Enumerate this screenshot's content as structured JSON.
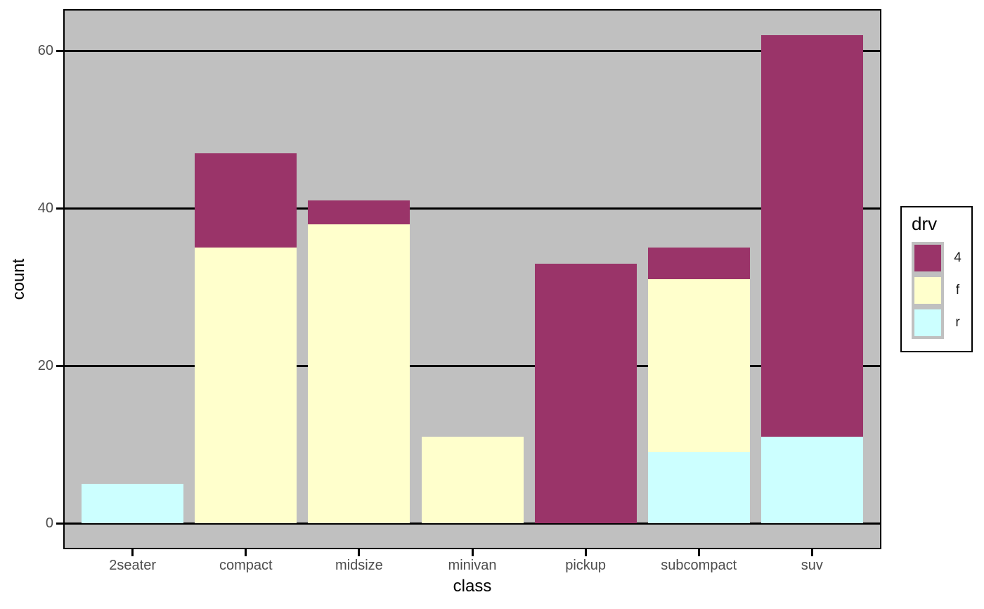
{
  "style": {
    "background": "#FFFFFF",
    "panel_background": "#C0C0C0",
    "grid_color": "#000000",
    "panel_border_color": "#000000",
    "tick_color": "#000000",
    "tick_label_color": "#4D4D4D",
    "axis_title_color": "#000000",
    "legend_background": "#FFFFFF",
    "legend_border_color": "#000000",
    "legend_key_background": "#C0C0C0"
  },
  "chart_data": {
    "type": "bar",
    "stacked": true,
    "title": "",
    "xlabel": "class",
    "ylabel": "count",
    "categories": [
      "2seater",
      "compact",
      "midsize",
      "minivan",
      "pickup",
      "subcompact",
      "suv"
    ],
    "series": [
      {
        "name": "4",
        "color": "#9A3469",
        "values": [
          0,
          12,
          3,
          0,
          33,
          4,
          51
        ]
      },
      {
        "name": "f",
        "color": "#FFFFCC",
        "values": [
          0,
          35,
          38,
          11,
          0,
          22,
          0
        ]
      },
      {
        "name": "r",
        "color": "#CCFFFF",
        "values": [
          5,
          0,
          0,
          0,
          0,
          9,
          11
        ]
      }
    ],
    "stack_order_bottom_to_top": [
      "r",
      "f",
      "4"
    ],
    "totals": [
      5,
      47,
      41,
      11,
      33,
      35,
      62
    ],
    "y_ticks": [
      0,
      20,
      40,
      60
    ],
    "y_tick_labels": [
      "0",
      "20",
      "40",
      "60"
    ],
    "ylim": [
      -3.1,
      65.1
    ],
    "grid": "horizontal-major-only",
    "bar_width_fraction": 0.9,
    "legend": {
      "title": "drv",
      "position": "right",
      "entries": [
        {
          "label": "4",
          "color": "#9A3469"
        },
        {
          "label": "f",
          "color": "#FFFFCC"
        },
        {
          "label": "r",
          "color": "#CCFFFF"
        }
      ]
    }
  }
}
